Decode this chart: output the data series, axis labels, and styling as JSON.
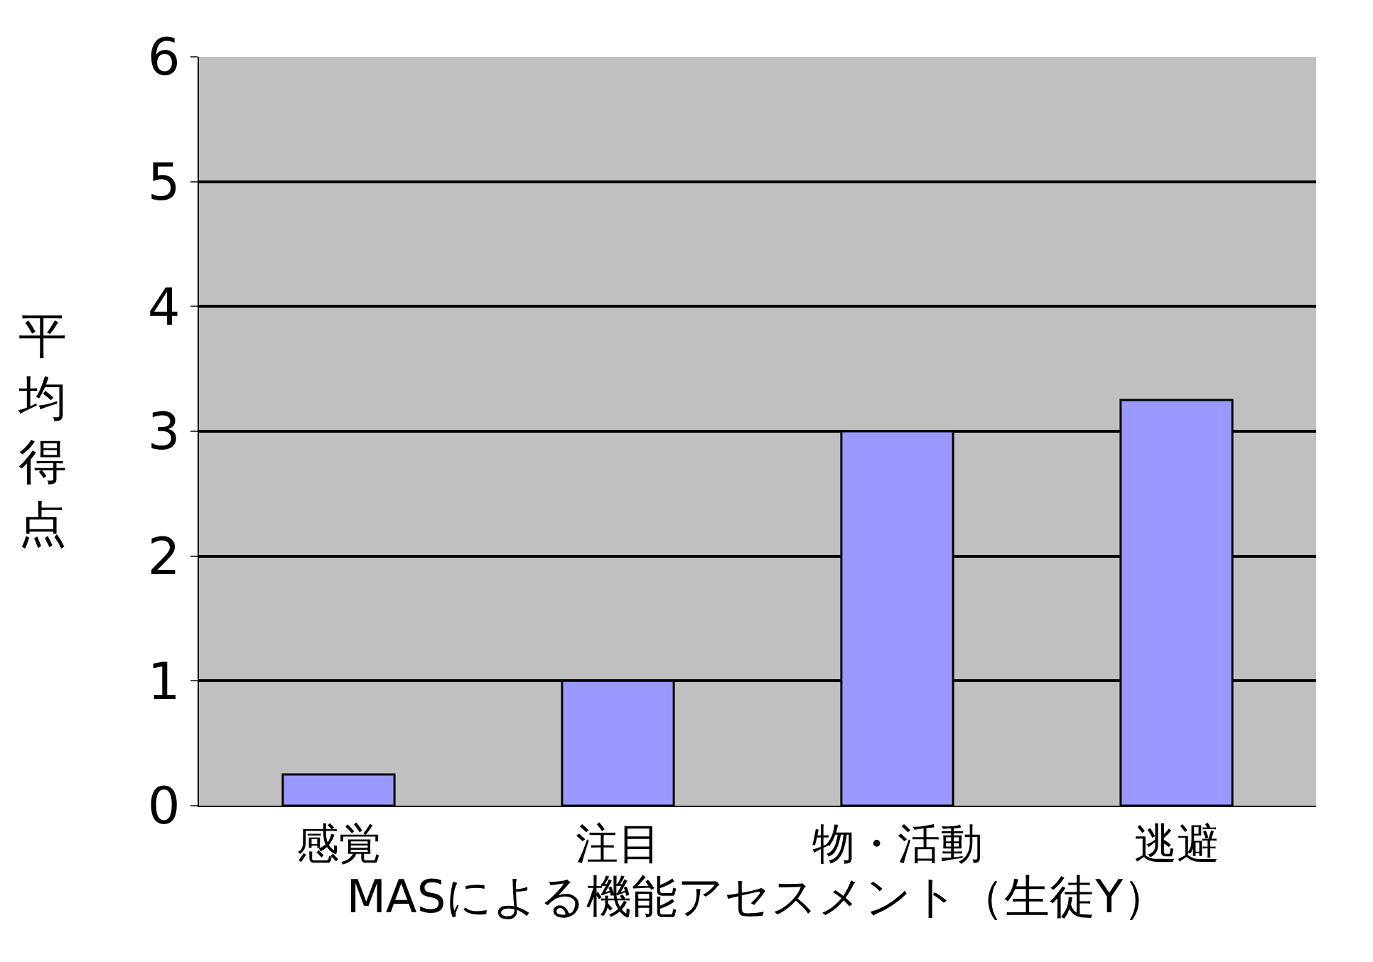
{
  "chart_data": {
    "type": "bar",
    "xlabel": "MASによる機能アセスメント（生徒Y）",
    "ylabel": "平均得点",
    "categories": [
      "感覚",
      "注目",
      "物・活動",
      "逃避"
    ],
    "values": [
      0.25,
      1.0,
      3.0,
      3.25
    ],
    "color": "#9999ff",
    "ylim": [
      0,
      6
    ],
    "yticks": [
      0,
      1,
      2,
      3,
      4,
      5,
      6
    ],
    "grid": "y"
  }
}
